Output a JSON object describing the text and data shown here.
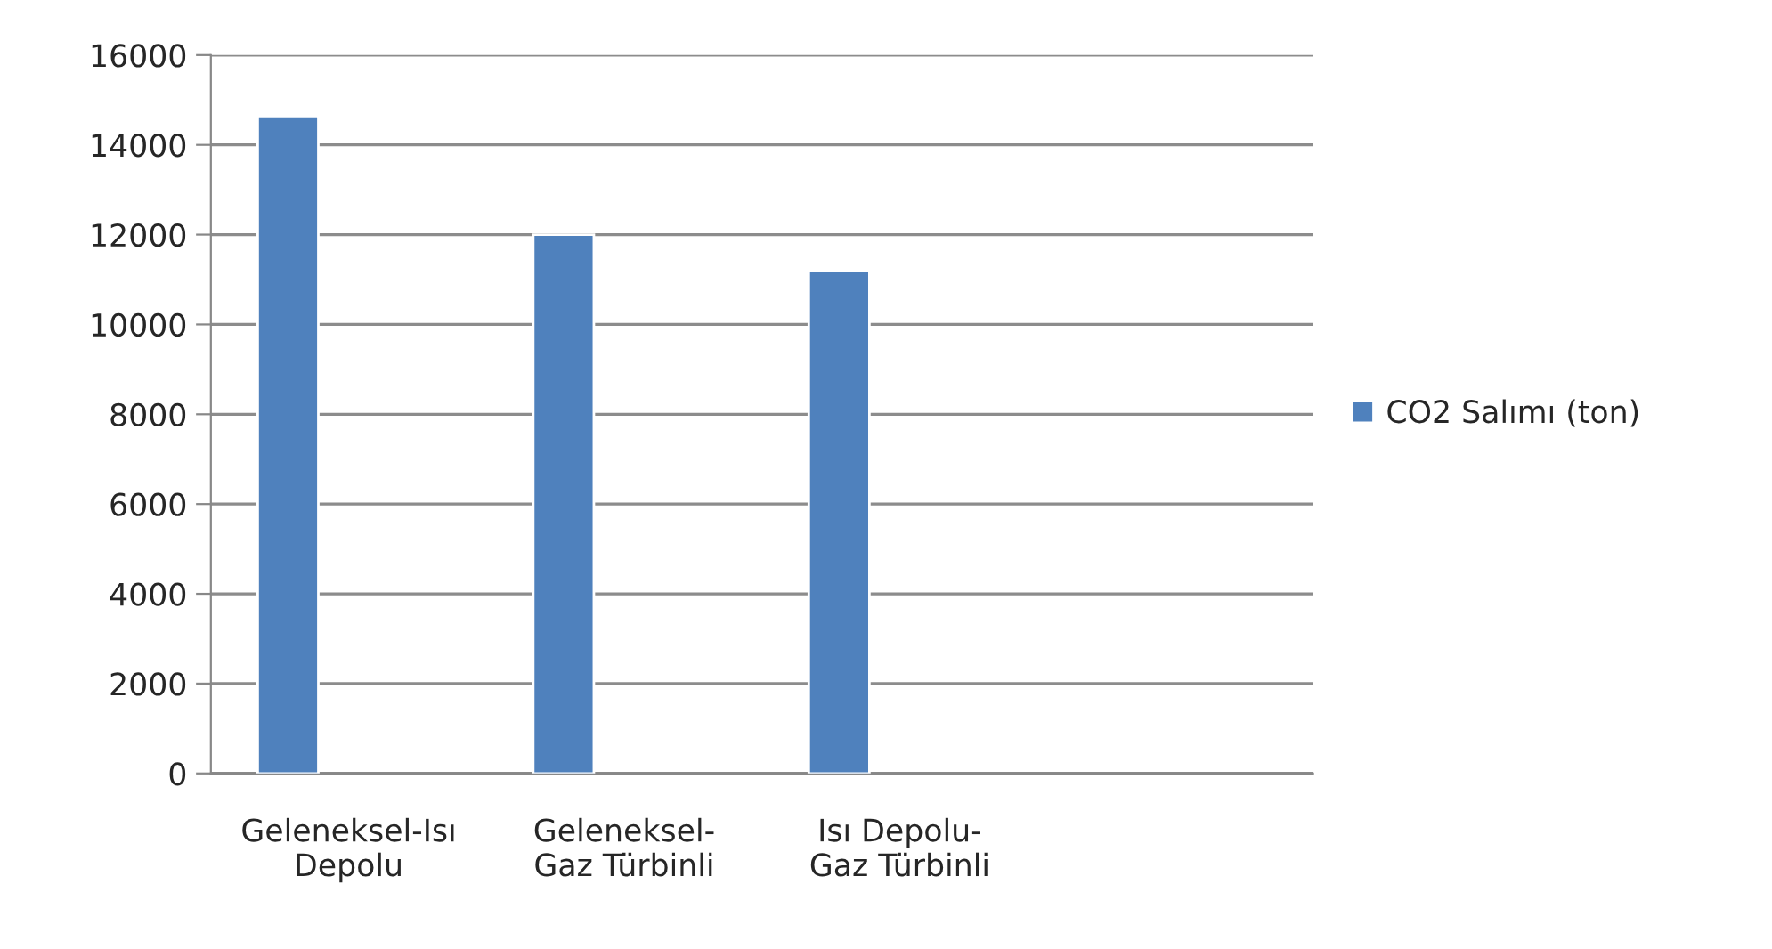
{
  "chart_data": {
    "type": "bar",
    "categories": [
      "Geleneksel-Isı\nDepolu",
      "Geleneksel-\nGaz Türbinli",
      "Isı Depolu-\nGaz Türbinli",
      null
    ],
    "series": [
      {
        "name": "CO2 Salımı (ton)",
        "color": "#4f81bd",
        "values": [
          14640,
          12000,
          11200,
          null
        ]
      }
    ],
    "ylim": [
      0,
      16000
    ],
    "yticks": [
      0,
      2000,
      4000,
      6000,
      8000,
      10000,
      12000,
      14000,
      16000
    ],
    "grid": "y",
    "legend": "right"
  }
}
